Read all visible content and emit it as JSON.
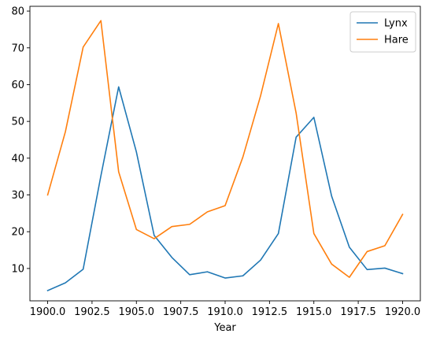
{
  "chart_data": {
    "type": "line",
    "title": "",
    "xlabel": "Year",
    "ylabel": "",
    "xlim": [
      1899.0,
      1921.0
    ],
    "ylim": [
      1.2,
      81.3
    ],
    "x": [
      1900,
      1901,
      1902,
      1903,
      1904,
      1905,
      1906,
      1907,
      1908,
      1909,
      1910,
      1911,
      1912,
      1913,
      1914,
      1915,
      1916,
      1917,
      1918,
      1919,
      1920
    ],
    "xticks": [
      1900.0,
      1902.5,
      1905.0,
      1907.5,
      1910.0,
      1912.5,
      1915.0,
      1917.5,
      1920.0
    ],
    "xtick_labels": [
      "1900.0",
      "1902.5",
      "1905.0",
      "1907.5",
      "1910.0",
      "1912.5",
      "1915.0",
      "1917.5",
      "1920.0"
    ],
    "yticks": [
      10,
      20,
      30,
      40,
      50,
      60,
      70,
      80
    ],
    "ytick_labels": [
      "10",
      "20",
      "30",
      "40",
      "50",
      "60",
      "70",
      "80"
    ],
    "grid": false,
    "legend_position": "top-right",
    "series": [
      {
        "name": "Lynx",
        "color": "#1f77b4",
        "values": [
          4.0,
          6.1,
          9.8,
          35.2,
          59.4,
          41.7,
          19.0,
          13.0,
          8.3,
          9.1,
          7.4,
          8.0,
          12.3,
          19.5,
          45.7,
          51.1,
          29.7,
          15.8,
          9.7,
          10.1,
          8.6
        ]
      },
      {
        "name": "Hare",
        "color": "#ff7f0e",
        "values": [
          30.0,
          47.2,
          70.2,
          77.4,
          36.3,
          20.6,
          18.1,
          21.4,
          22.0,
          25.4,
          27.1,
          40.3,
          57.0,
          76.6,
          52.3,
          19.5,
          11.2,
          7.6,
          14.6,
          16.2,
          24.7
        ]
      }
    ]
  }
}
